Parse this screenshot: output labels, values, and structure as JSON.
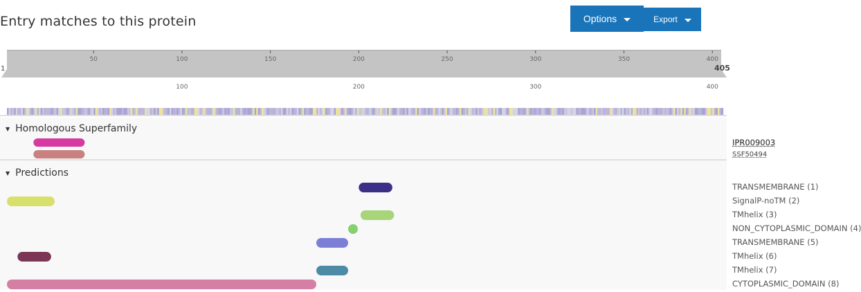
{
  "header": {
    "title": "Entry matches to this protein"
  },
  "toolbar": {
    "options_label": "Options",
    "export_label": "Export"
  },
  "ruler": {
    "length": 405,
    "start_label": "1",
    "end_label": "405",
    "top_ticks": [
      "50",
      "100",
      "150",
      "200",
      "250",
      "300",
      "350",
      "400"
    ],
    "bottom_ticks": [
      "100",
      "200",
      "300",
      "400"
    ]
  },
  "sections": {
    "homologous": {
      "label": "Homologous Superfamily",
      "entry_accession": "IPR009003",
      "signature_accession": "SSF50494"
    },
    "predictions": {
      "label": "Predictions",
      "items": [
        "TRANSMEMBRANE (1)",
        "SignalP-noTM (2)",
        "TMhelix (3)",
        "NON_CYTOPLASMIC_DOMAIN (4)",
        "TRANSMEMBRANE (5)",
        "TMhelix (6)",
        "TMhelix (7)",
        "CYTOPLASMIC_DOMAIN (8)"
      ]
    }
  },
  "tracks": {
    "homologous": [
      {
        "start": 16,
        "end": 45,
        "color": "#d63aa0"
      },
      {
        "start": 16,
        "end": 45,
        "color": "#c88080"
      }
    ],
    "predictions": [
      {
        "start": 200,
        "end": 219,
        "color": "#3b2f87"
      },
      {
        "start": 1,
        "end": 28,
        "color": "#d7e06a"
      },
      {
        "start": 201,
        "end": 220,
        "color": "#a8d57a"
      },
      {
        "start": 194,
        "end": 198,
        "color": "#86d070"
      },
      {
        "start": 176,
        "end": 194,
        "color": "#7c7fd6"
      },
      {
        "start": 7,
        "end": 26,
        "color": "#7b3555"
      },
      {
        "start": 176,
        "end": 194,
        "color": "#4d8aa6"
      },
      {
        "start": 1,
        "end": 176,
        "color": "#d67fa4"
      }
    ]
  }
}
